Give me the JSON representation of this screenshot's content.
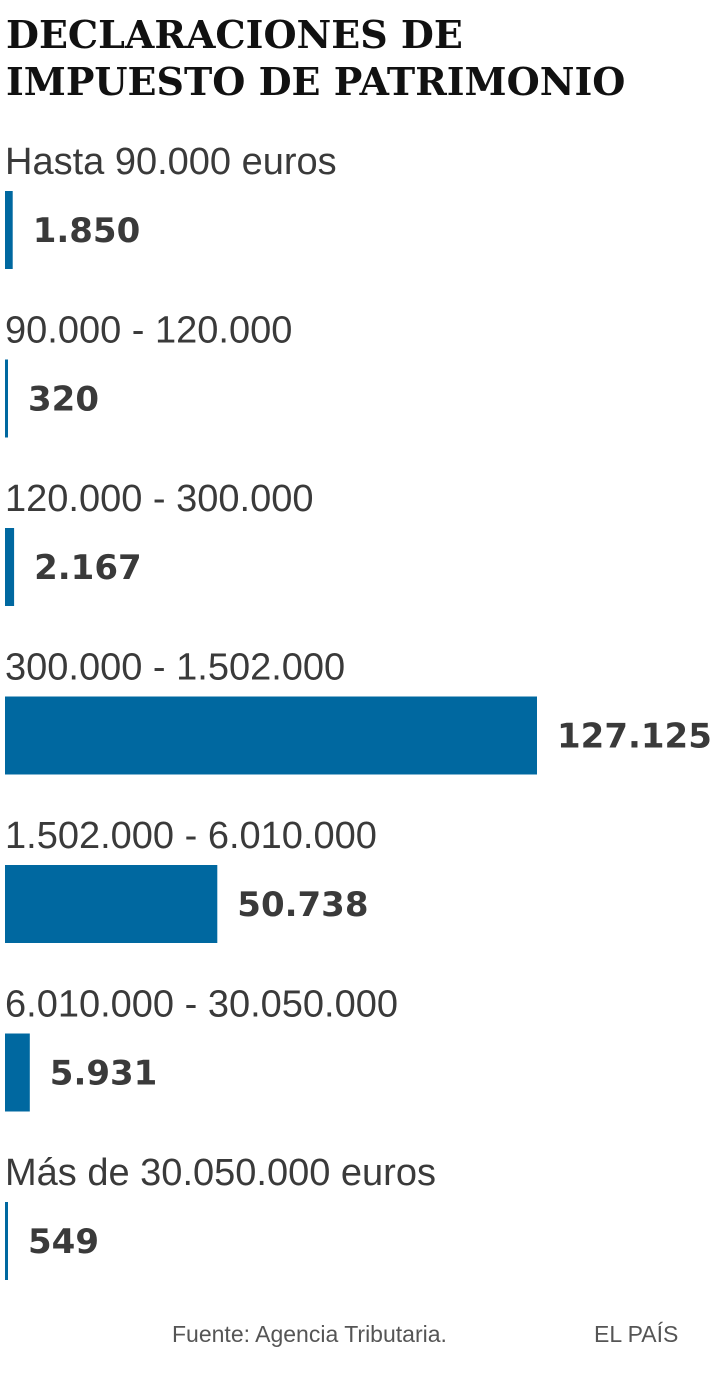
{
  "chart_data": {
    "type": "bar",
    "orientation": "horizontal",
    "title_lines": [
      "DECLARACIONES DE",
      "IMPUESTO DE PATRIMONIO"
    ],
    "categories": [
      "Hasta 90.000 euros",
      "90.000 - 120.000",
      "120.000 - 300.000",
      "300.000 - 1.502.000",
      "1.502.000 - 6.010.000",
      "6.010.000 - 30.050.000",
      "Más de 30.050.000 euros"
    ],
    "values": [
      1850,
      320,
      2167,
      127125,
      50738,
      5931,
      549
    ],
    "value_labels": [
      "1.850",
      "320",
      "2.167",
      "127.125",
      "50.738",
      "5.931",
      "549"
    ],
    "xlim": [
      0,
      127125
    ],
    "bar_color": "#0068a0",
    "source": "Fuente: Agencia Tributaria.",
    "credit": "EL PAÍS"
  }
}
